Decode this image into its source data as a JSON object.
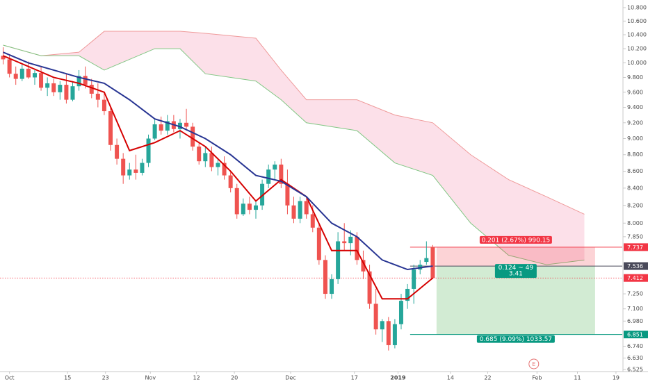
{
  "chart_data": {
    "type": "candlestick",
    "log": true,
    "ylim": [
      6.525,
      10.8
    ],
    "yticks": [
      {
        "value": 10.8,
        "label": "10.800"
      },
      {
        "value": 10.6,
        "label": "10.600"
      },
      {
        "value": 10.4,
        "label": "10.400"
      },
      {
        "value": 10.2,
        "label": "10.200"
      },
      {
        "value": 10,
        "label": "10.000"
      },
      {
        "value": 9.8,
        "label": "9.800"
      },
      {
        "value": 9.6,
        "label": "9.600"
      },
      {
        "value": 9.4,
        "label": "9.400"
      },
      {
        "value": 9.2,
        "label": "9.200"
      },
      {
        "value": 9,
        "label": "9.000"
      },
      {
        "value": 8.8,
        "label": "8.800"
      },
      {
        "value": 8.6,
        "label": "8.600"
      },
      {
        "value": 8.4,
        "label": "8.400"
      },
      {
        "value": 8.2,
        "label": "8.200"
      },
      {
        "value": 8,
        "label": "8.000"
      },
      {
        "value": 7.85,
        "label": "7.850"
      },
      {
        "value": 7.25,
        "label": "7.250"
      },
      {
        "value": 7.1,
        "label": "7.100"
      },
      {
        "value": 6.98,
        "label": "6.980"
      },
      {
        "value": 6.74,
        "label": "6.740"
      },
      {
        "value": 6.63,
        "label": "6.630"
      },
      {
        "value": 6.525,
        "label": "6.525"
      }
    ],
    "xlim": [
      -0.5,
      98
    ],
    "xticks": [
      {
        "value": 1,
        "label": "Oct"
      },
      {
        "value": 10.2,
        "label": "15"
      },
      {
        "value": 16.2,
        "label": "23"
      },
      {
        "value": 23.3,
        "label": "Nov"
      },
      {
        "value": 30.6,
        "label": "12"
      },
      {
        "value": 36.6,
        "label": "20"
      },
      {
        "value": 45.5,
        "label": "Dec"
      },
      {
        "value": 55.6,
        "label": "17"
      },
      {
        "value": 62.5,
        "label": "2019"
      },
      {
        "value": 70.8,
        "label": "14"
      },
      {
        "value": 76.7,
        "label": "22"
      },
      {
        "value": 84.5,
        "label": "Feb"
      },
      {
        "value": 90.9,
        "label": "11"
      },
      {
        "value": 97,
        "label": "19"
      }
    ],
    "up_color": "#26a69a",
    "down_color": "#ef5350",
    "x": [
      0,
      1,
      2,
      3,
      4,
      5,
      6,
      7,
      8,
      9,
      10,
      11,
      12,
      13,
      14,
      15,
      16,
      17,
      18,
      19,
      20,
      21,
      22,
      23,
      24,
      25,
      26,
      27,
      28,
      29,
      30,
      31,
      32,
      33,
      34,
      35,
      36,
      37,
      38,
      39,
      40,
      41,
      42,
      43,
      44,
      45,
      46,
      47,
      48,
      49,
      50,
      51,
      52,
      53,
      54,
      55,
      56,
      57,
      58,
      59,
      60,
      61,
      62,
      63,
      64,
      65,
      66,
      67,
      68
    ],
    "open": [
      10.1,
      10.05,
      9.85,
      9.78,
      9.92,
      9.8,
      9.86,
      9.66,
      9.72,
      9.6,
      9.7,
      9.5,
      9.68,
      9.82,
      9.7,
      9.58,
      9.5,
      9.35,
      8.92,
      8.75,
      8.55,
      8.62,
      8.58,
      8.7,
      9.0,
      9.18,
      9.1,
      9.22,
      9.12,
      9.2,
      9.15,
      8.9,
      8.72,
      8.82,
      8.65,
      8.7,
      8.55,
      8.4,
      8.1,
      8.22,
      8.15,
      8.2,
      8.45,
      8.62,
      8.68,
      8.45,
      8.2,
      8.05,
      8.25,
      8.1,
      7.95,
      7.6,
      7.25,
      7.4,
      7.8,
      7.78,
      7.85,
      7.6,
      7.48,
      7.15,
      6.9,
      6.98,
      6.75,
      6.95,
      7.18,
      7.3,
      7.5,
      7.58,
      7.737
    ],
    "high": [
      10.22,
      10.12,
      9.95,
      9.98,
      10.02,
      9.9,
      9.95,
      9.8,
      9.78,
      9.75,
      9.85,
      9.75,
      9.9,
      9.95,
      9.78,
      9.72,
      9.6,
      9.4,
      9.0,
      8.82,
      8.7,
      8.8,
      8.75,
      9.05,
      9.25,
      9.28,
      9.3,
      9.3,
      9.25,
      9.38,
      9.2,
      8.95,
      8.9,
      8.9,
      8.75,
      8.78,
      8.6,
      8.45,
      8.28,
      8.3,
      8.25,
      8.5,
      8.68,
      8.72,
      8.75,
      8.62,
      8.3,
      8.3,
      8.28,
      8.2,
      8.0,
      7.65,
      7.45,
      7.9,
      8.0,
      7.92,
      7.9,
      7.7,
      7.55,
      7.3,
      7.0,
      7.02,
      7.0,
      7.25,
      7.35,
      7.55,
      7.6,
      7.8,
      7.76
    ],
    "low": [
      9.98,
      9.8,
      9.7,
      9.75,
      9.78,
      9.7,
      9.62,
      9.55,
      9.55,
      9.5,
      9.45,
      9.48,
      9.62,
      9.65,
      9.52,
      9.4,
      9.3,
      8.85,
      8.68,
      8.45,
      8.5,
      8.5,
      8.55,
      8.65,
      8.98,
      9.05,
      9.05,
      9.08,
      9.0,
      9.1,
      8.85,
      8.68,
      8.65,
      8.6,
      8.55,
      8.5,
      8.35,
      8.05,
      8.08,
      8.1,
      8.05,
      8.15,
      8.4,
      8.5,
      8.4,
      8.1,
      8.0,
      8.0,
      8.05,
      7.9,
      7.55,
      7.2,
      7.2,
      7.35,
      7.7,
      7.65,
      7.55,
      7.4,
      7.1,
      6.85,
      6.78,
      6.7,
      6.72,
      6.9,
      7.1,
      7.15,
      7.45,
      7.55,
      7.4
    ],
    "close": [
      10.05,
      9.85,
      9.78,
      9.92,
      9.8,
      9.86,
      9.66,
      9.72,
      9.6,
      9.7,
      9.5,
      9.68,
      9.82,
      9.7,
      9.58,
      9.5,
      9.35,
      8.92,
      8.75,
      8.55,
      8.62,
      8.58,
      8.7,
      9.0,
      9.18,
      9.1,
      9.22,
      9.12,
      9.2,
      9.15,
      8.9,
      8.72,
      8.82,
      8.65,
      8.7,
      8.55,
      8.4,
      8.1,
      8.22,
      8.15,
      8.2,
      8.45,
      8.62,
      8.68,
      8.45,
      8.2,
      8.05,
      8.25,
      8.1,
      7.95,
      7.6,
      7.25,
      7.4,
      7.8,
      7.78,
      7.85,
      7.6,
      7.48,
      7.15,
      6.9,
      6.98,
      6.75,
      6.95,
      7.18,
      7.3,
      7.5,
      7.55,
      7.62,
      7.412
    ],
    "lines": [
      {
        "color": "#d50000",
        "x": [
          0,
          4,
          8,
          12,
          16,
          20,
          24,
          28,
          32,
          36,
          40,
          44,
          48,
          52,
          56,
          60,
          64,
          68
        ],
        "values": [
          10.1,
          9.95,
          9.8,
          9.72,
          9.6,
          8.85,
          8.95,
          9.1,
          8.9,
          8.6,
          8.25,
          8.5,
          8.3,
          7.7,
          7.7,
          7.2,
          7.2,
          7.412
        ]
      },
      {
        "color": "#283593",
        "x": [
          0,
          4,
          8,
          12,
          16,
          20,
          24,
          28,
          32,
          36,
          40,
          44,
          48,
          52,
          56,
          60,
          64,
          68
        ],
        "values": [
          10.15,
          10.0,
          9.9,
          9.8,
          9.72,
          9.5,
          9.25,
          9.15,
          9.0,
          8.8,
          8.55,
          8.48,
          8.3,
          8.0,
          7.85,
          7.6,
          7.5,
          7.536
        ]
      }
    ],
    "cloud": {
      "x": [
        0,
        6,
        12,
        16,
        24,
        28,
        32,
        40,
        44,
        48,
        56,
        62,
        68,
        74,
        80,
        86,
        92
      ],
      "upper": [
        10.25,
        10.1,
        10.15,
        10.45,
        10.45,
        10.45,
        10.42,
        10.35,
        9.9,
        9.5,
        9.5,
        9.3,
        9.2,
        8.8,
        8.5,
        8.3,
        8.1
      ],
      "lower": [
        10.25,
        10.1,
        10.1,
        9.9,
        10.2,
        10.2,
        9.85,
        9.75,
        9.5,
        9.2,
        9.1,
        8.7,
        8.55,
        8.0,
        7.65,
        7.55,
        7.6
      ],
      "upper_color": "#ef9a9a",
      "lower_color": "#81c784",
      "fill": "rgba(244,143,177,0.28)"
    },
    "price_levels": [
      {
        "value": 7.737,
        "color": "#f23645"
      },
      {
        "value": 7.536,
        "color": "#4a4a5a"
      },
      {
        "value": 7.412,
        "color": "#f23645"
      },
      {
        "value": 6.851,
        "color": "#089981"
      }
    ],
    "position": {
      "x_start": 68.6,
      "x_end": 93.7,
      "stop": 7.737,
      "entry": 7.536,
      "target": 6.851,
      "stop_text": "0.201 (2.67%) 990.15",
      "entry_text": [
        "0.124 ~ 49",
        "3.41"
      ],
      "target_text": "0.685 (9.09%) 1033.57"
    },
    "events": [
      {
        "x": 84,
        "label": "E"
      }
    ]
  }
}
